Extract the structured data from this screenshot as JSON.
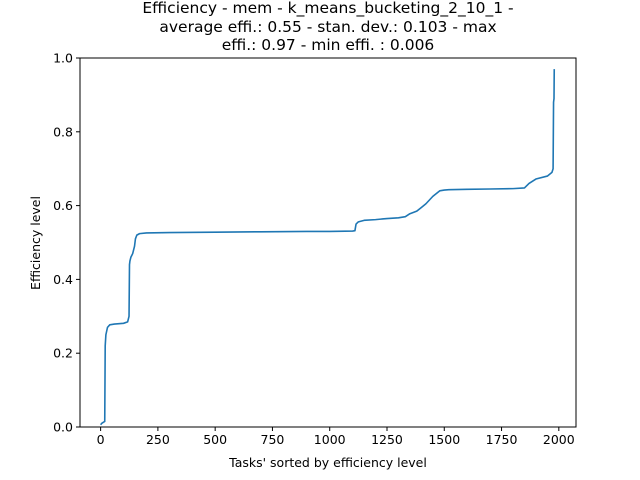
{
  "chart_data": {
    "type": "line",
    "title_lines": [
      "Efficiency - mem - k_means_bucketing_2_10_1 -",
      "average effi.: 0.55 - stan. dev.: 0.103 - max",
      "effi.: 0.97 - min effi. : 0.006"
    ],
    "xlabel": "Tasks' sorted by efficiency level",
    "ylabel": "Efficiency level",
    "xlim": [
      -90,
      2075
    ],
    "ylim": [
      0,
      1.0
    ],
    "xticks": [
      0,
      250,
      500,
      750,
      1000,
      1250,
      1500,
      1750,
      2000
    ],
    "yticks": [
      0.0,
      0.2,
      0.4,
      0.6,
      0.8,
      1.0
    ],
    "xtick_labels": [
      "0",
      "250",
      "500",
      "750",
      "1000",
      "1250",
      "1500",
      "1750",
      "2000"
    ],
    "ytick_labels": [
      "0.0",
      "0.2",
      "0.4",
      "0.6",
      "0.8",
      "1.0"
    ],
    "grid": false,
    "series": [
      {
        "color": "#1f77b4",
        "x": [
          0,
          5,
          10,
          18,
          20,
          23,
          30,
          40,
          60,
          80,
          100,
          118,
          124,
          126,
          128,
          132,
          140,
          148,
          152,
          158,
          170,
          200,
          300,
          500,
          700,
          900,
          1000,
          1100,
          1110,
          1115,
          1125,
          1150,
          1200,
          1250,
          1300,
          1330,
          1350,
          1380,
          1400,
          1420,
          1450,
          1480,
          1500,
          1520,
          1600,
          1700,
          1800,
          1850,
          1870,
          1900,
          1950,
          1970,
          1975,
          1977,
          1978,
          1979,
          1980
        ],
        "y": [
          0.006,
          0.01,
          0.012,
          0.015,
          0.22,
          0.25,
          0.27,
          0.277,
          0.279,
          0.28,
          0.281,
          0.285,
          0.3,
          0.44,
          0.45,
          0.46,
          0.47,
          0.49,
          0.51,
          0.52,
          0.524,
          0.526,
          0.527,
          0.528,
          0.529,
          0.53,
          0.53,
          0.531,
          0.532,
          0.55,
          0.556,
          0.56,
          0.562,
          0.565,
          0.567,
          0.57,
          0.578,
          0.585,
          0.595,
          0.605,
          0.625,
          0.64,
          0.642,
          0.643,
          0.644,
          0.645,
          0.646,
          0.648,
          0.66,
          0.672,
          0.68,
          0.69,
          0.7,
          0.88,
          0.885,
          0.89,
          0.97
        ]
      }
    ]
  }
}
